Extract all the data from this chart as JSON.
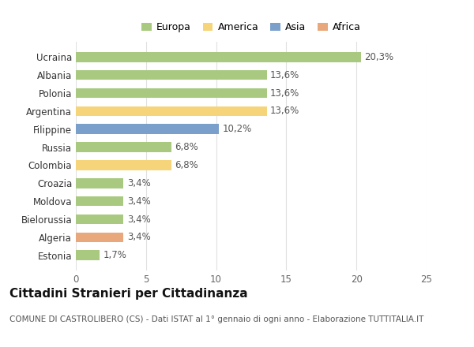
{
  "categories": [
    "Ucraina",
    "Albania",
    "Polonia",
    "Argentina",
    "Filippine",
    "Russia",
    "Colombia",
    "Croazia",
    "Moldova",
    "Bielorussia",
    "Algeria",
    "Estonia"
  ],
  "values": [
    20.3,
    13.6,
    13.6,
    13.6,
    10.2,
    6.8,
    6.8,
    3.4,
    3.4,
    3.4,
    3.4,
    1.7
  ],
  "labels": [
    "20,3%",
    "13,6%",
    "13,6%",
    "13,6%",
    "10,2%",
    "6,8%",
    "6,8%",
    "3,4%",
    "3,4%",
    "3,4%",
    "3,4%",
    "1,7%"
  ],
  "continents": [
    "Europa",
    "Europa",
    "Europa",
    "America",
    "Asia",
    "Europa",
    "America",
    "Europa",
    "Europa",
    "Europa",
    "Africa",
    "Europa"
  ],
  "colors": {
    "Europa": "#a8c97f",
    "America": "#f5d47a",
    "Asia": "#7a9fcb",
    "Africa": "#e8a87c"
  },
  "legend_order": [
    "Europa",
    "America",
    "Asia",
    "Africa"
  ],
  "xlim": [
    0,
    25
  ],
  "xticks": [
    0,
    5,
    10,
    15,
    20,
    25
  ],
  "title": "Cittadini Stranieri per Cittadinanza",
  "subtitle": "COMUNE DI CASTROLIBERO (CS) - Dati ISTAT al 1° gennaio di ogni anno - Elaborazione TUTTITALIA.IT",
  "background_color": "#ffffff",
  "grid_color": "#e0e0e0",
  "bar_height": 0.55,
  "label_fontsize": 8.5,
  "tick_fontsize": 8.5,
  "title_fontsize": 11,
  "subtitle_fontsize": 7.5,
  "legend_fontsize": 9
}
